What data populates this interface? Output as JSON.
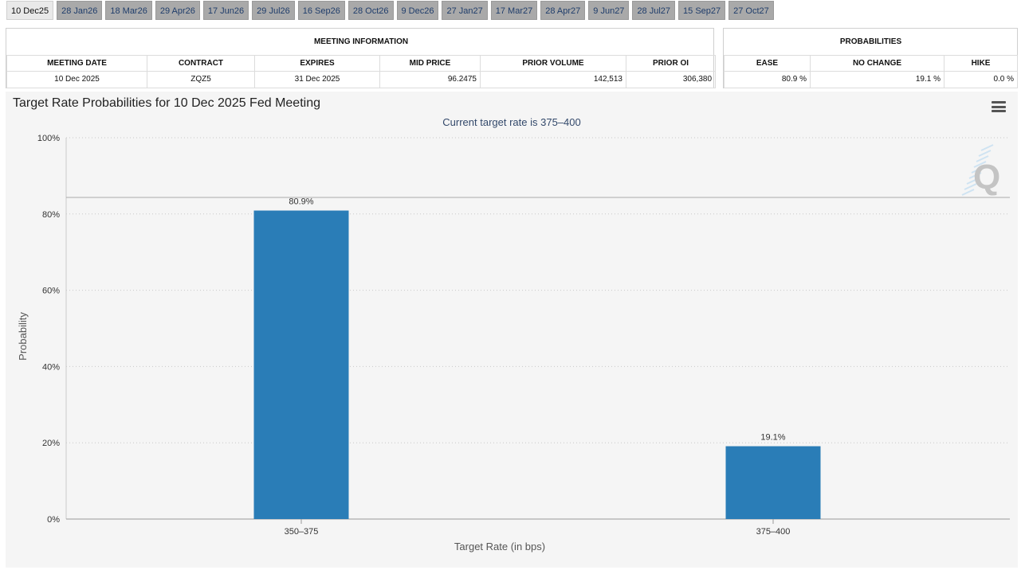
{
  "tabs": [
    "10 Dec25",
    "28 Jan26",
    "18 Mar26",
    "29 Apr26",
    "17 Jun26",
    "29 Jul26",
    "16 Sep26",
    "28 Oct26",
    "9 Dec26",
    "27 Jan27",
    "17 Mar27",
    "28 Apr27",
    "9 Jun27",
    "28 Jul27",
    "15 Sep27",
    "27 Oct27"
  ],
  "active_tab": 0,
  "meeting_info": {
    "title": "MEETING INFORMATION",
    "headers": [
      "MEETING DATE",
      "CONTRACT",
      "EXPIRES",
      "MID PRICE",
      "PRIOR VOLUME",
      "PRIOR OI"
    ],
    "row": [
      "10 Dec 2025",
      "ZQZ5",
      "31 Dec 2025",
      "96.2475",
      "142,513",
      "306,380"
    ]
  },
  "probabilities": {
    "title": "PROBABILITIES",
    "headers": [
      "EASE",
      "NO CHANGE",
      "HIKE"
    ],
    "row": [
      "80.9 %",
      "19.1 %",
      "0.0 %"
    ]
  },
  "chart": {
    "title": "Target Rate Probabilities for 10 Dec 2025 Fed Meeting",
    "subtitle": "Current target rate is 375–400",
    "watermark": "Q",
    "menu_icon": "hamburger-menu-icon",
    "bar_color": "#2a7db7"
  },
  "chart_data": {
    "type": "bar",
    "categories": [
      "350–375",
      "375–400"
    ],
    "values": [
      80.9,
      19.1
    ],
    "data_labels": [
      "80.9%",
      "19.1%"
    ],
    "xlabel": "Target Rate (in bps)",
    "ylabel": "Probability",
    "ylim": [
      0,
      100
    ],
    "yticks": [
      "0%",
      "20%",
      "40%",
      "60%",
      "80%",
      "100%"
    ],
    "grid": true
  }
}
